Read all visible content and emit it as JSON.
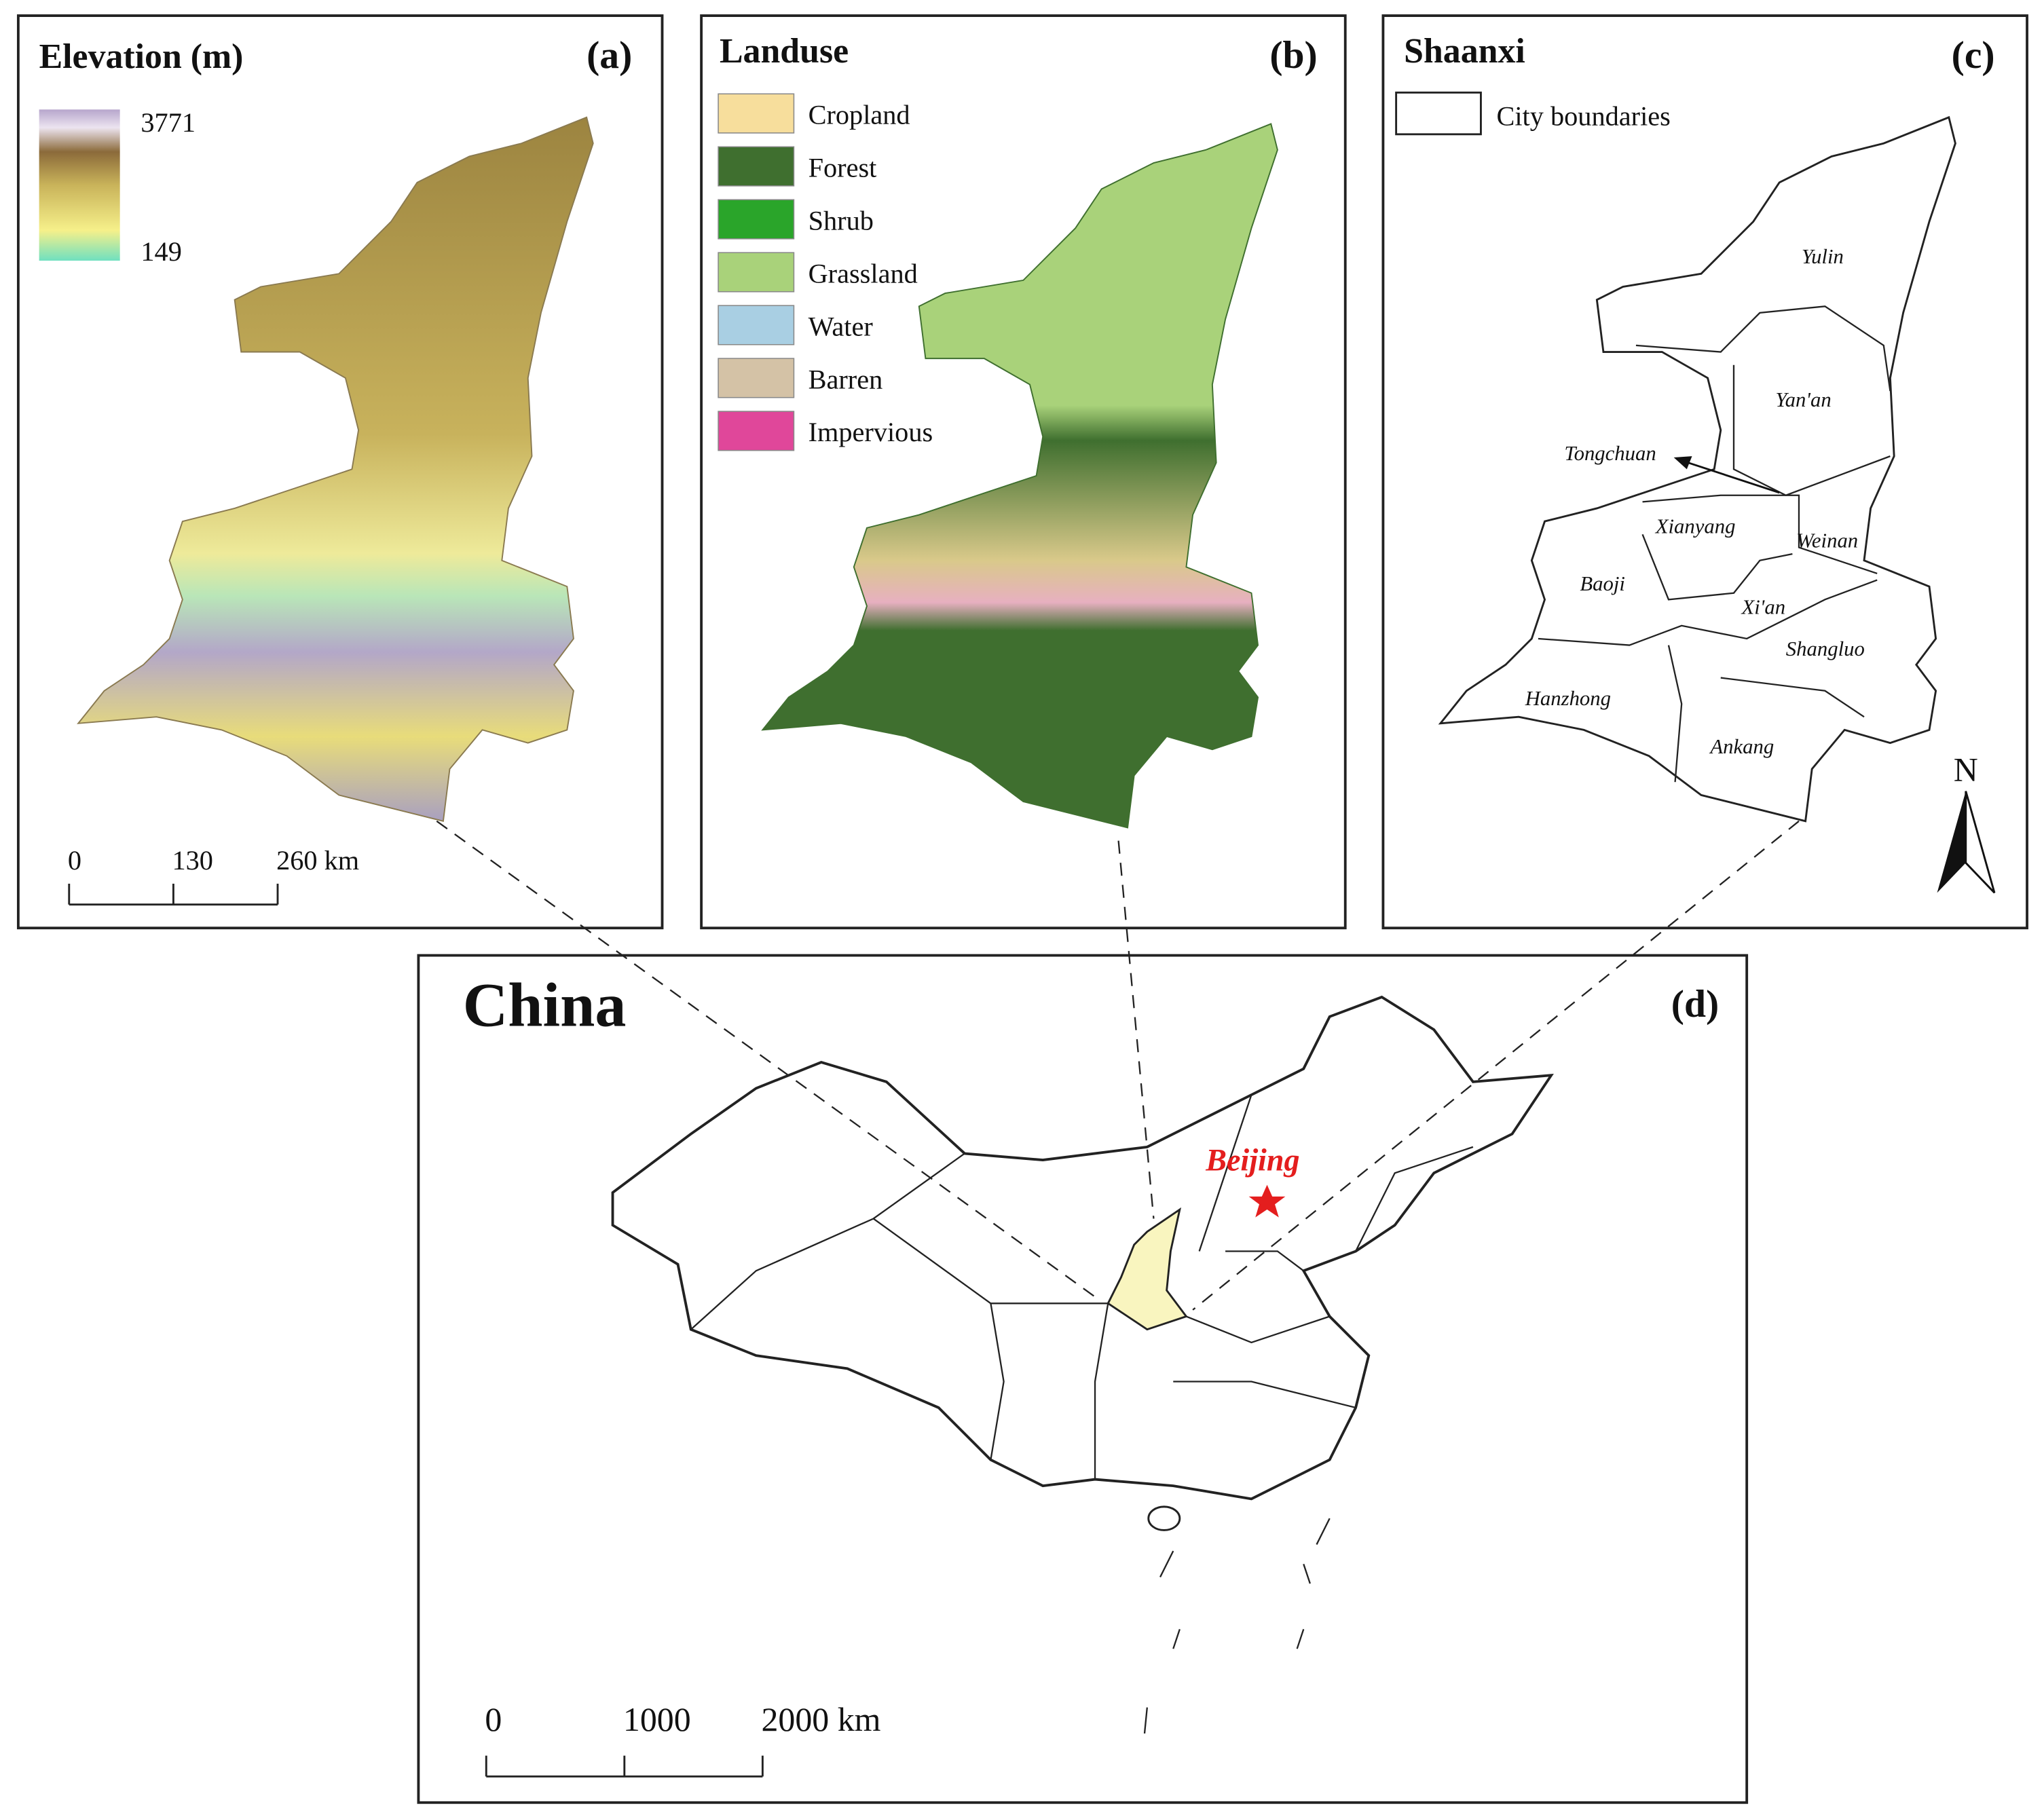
{
  "panel_a": {
    "title": "Elevation (m)",
    "label": "(a)",
    "legend_max": "3771",
    "legend_min": "149",
    "scale": [
      "0",
      "130",
      "260 km"
    ]
  },
  "panel_b": {
    "title": "Landuse",
    "label": "(b)",
    "legend": [
      {
        "name": "Cropland",
        "color": "#f7de9c"
      },
      {
        "name": "Forest",
        "color": "#3f6f2f"
      },
      {
        "name": "Shrub",
        "color": "#2aa52a"
      },
      {
        "name": "Grassland",
        "color": "#a9d27a"
      },
      {
        "name": "Water",
        "color": "#a9cfe3"
      },
      {
        "name": "Barren",
        "color": "#d4c2a6"
      },
      {
        "name": "Impervious",
        "color": "#e0479a"
      }
    ]
  },
  "panel_c": {
    "title": "Shaanxi",
    "label": "(c)",
    "legend": "City boundaries",
    "north": "N",
    "cities": [
      "Yulin",
      "Yan'an",
      "Tongchuan",
      "Xianyang",
      "Weinan",
      "Baoji",
      "Xi'an",
      "Shangluo",
      "Hanzhong",
      "Ankang"
    ]
  },
  "panel_d": {
    "title": "China",
    "label": "(d)",
    "capital": "Beijing",
    "scale": [
      "0",
      "1000",
      "2000 km"
    ]
  }
}
